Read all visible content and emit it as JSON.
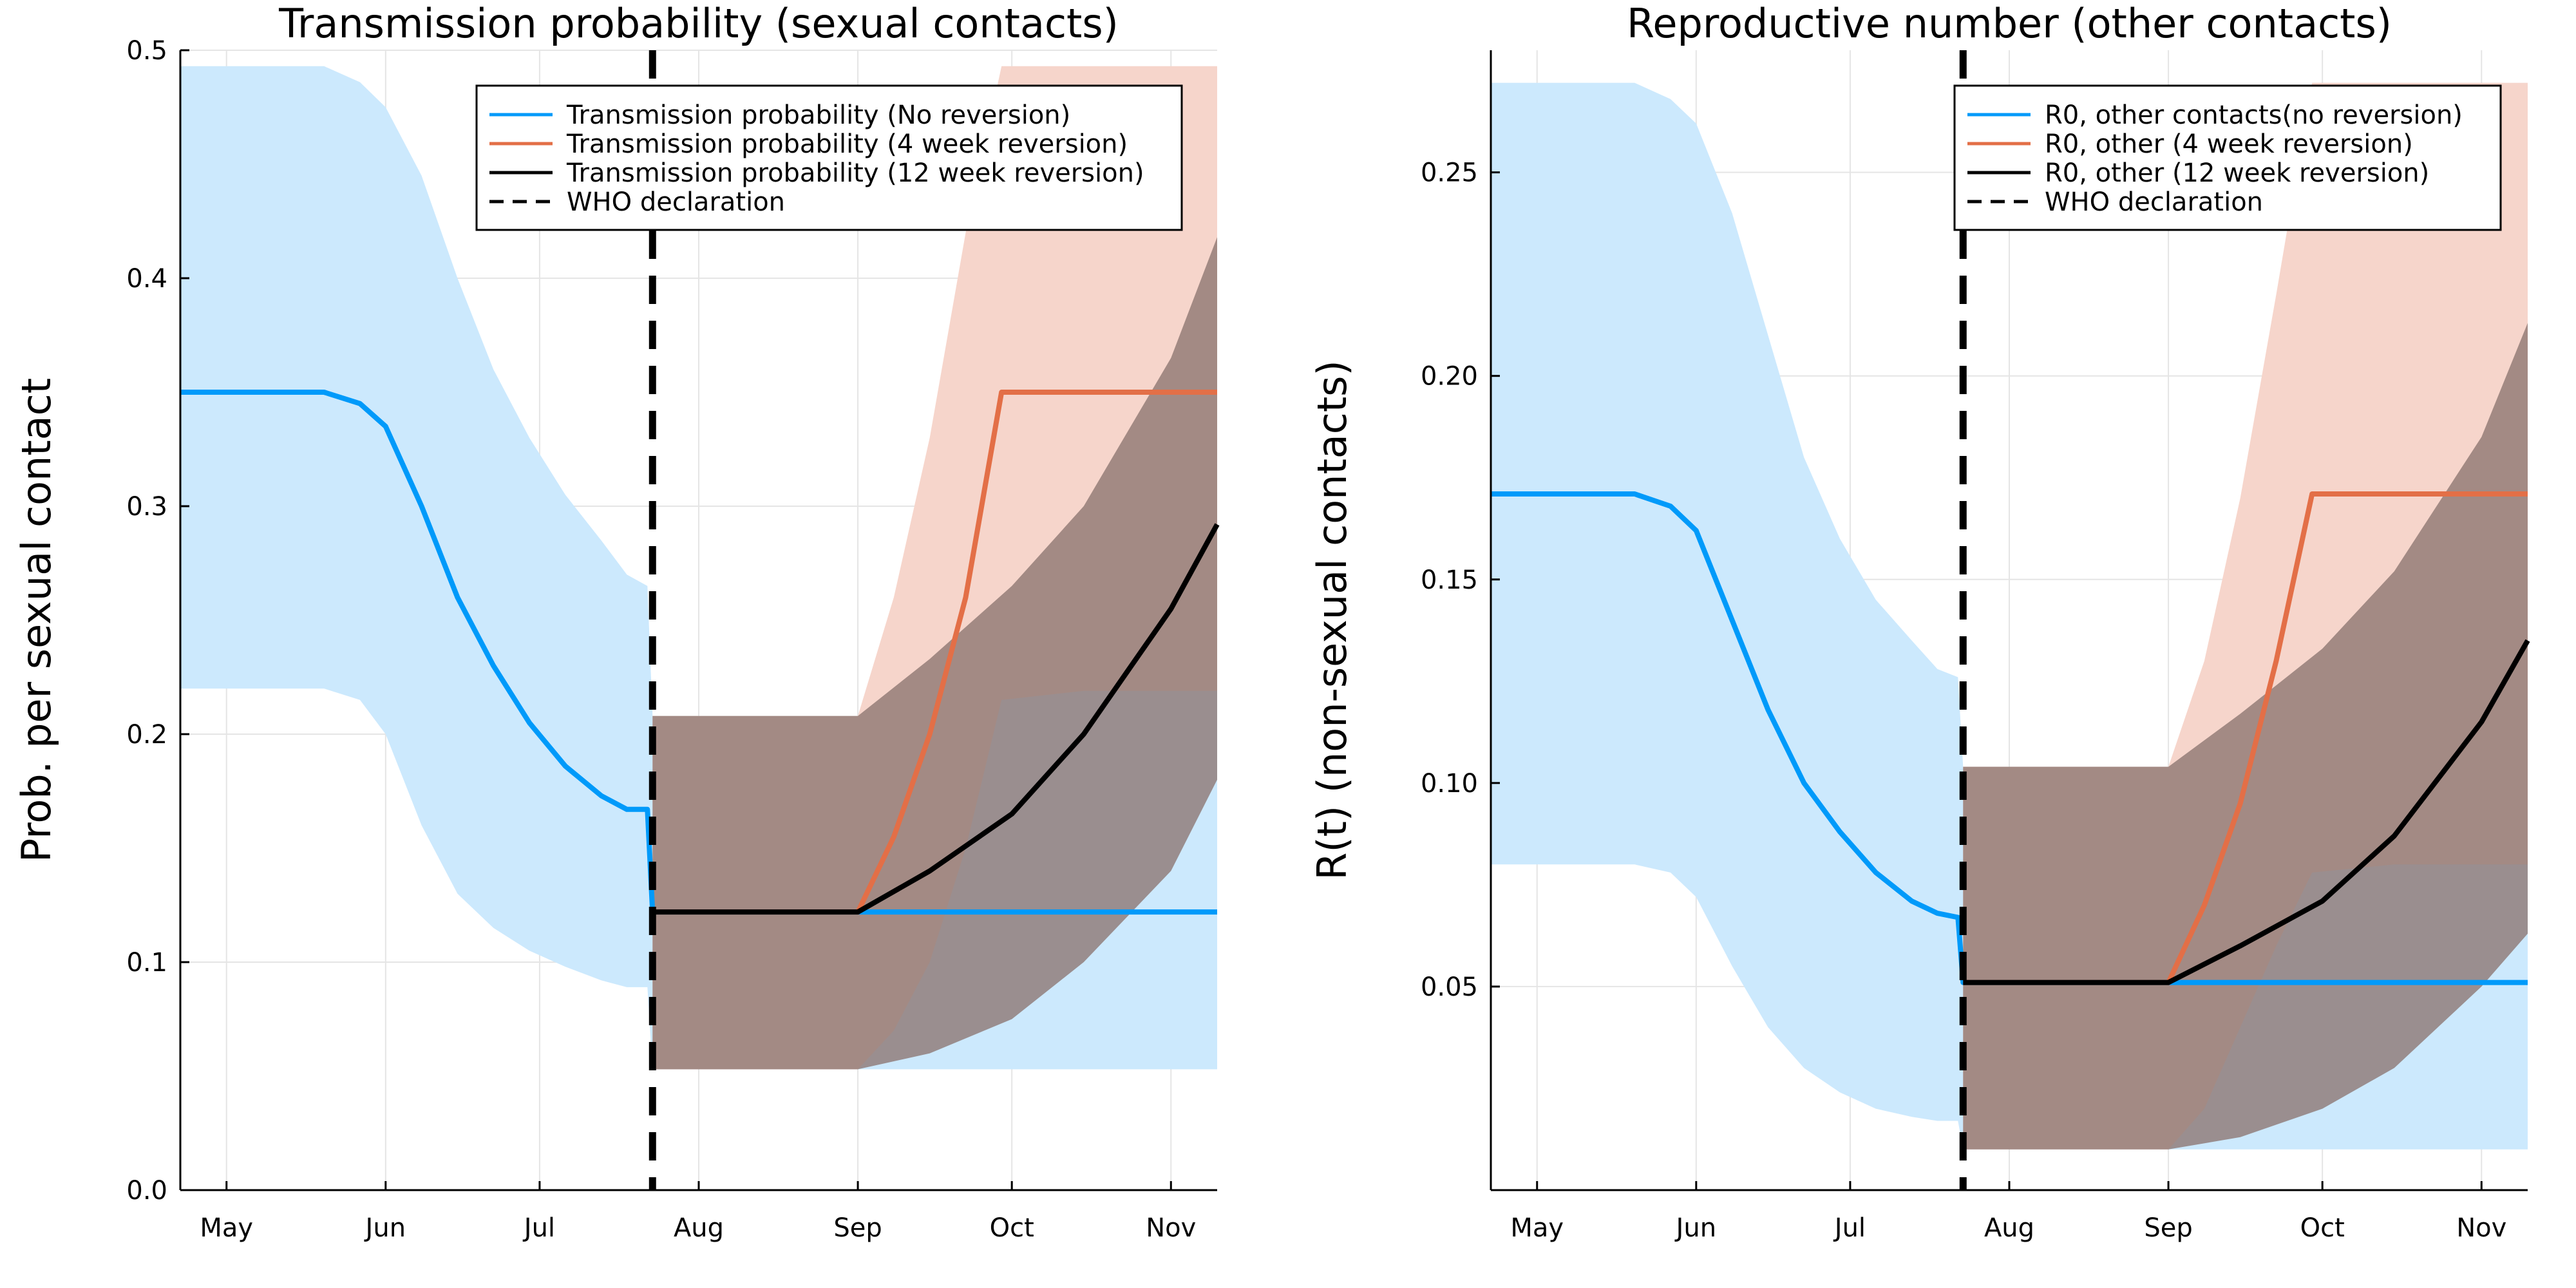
{
  "colors": {
    "no_reversion": "#009AFA",
    "no_reversion_band": "#CCE9FD",
    "four_week": "#E36F47",
    "four_week_band": "#F6D5CB",
    "twelve_week": "#000000",
    "overlap_band": "#8C7470",
    "who_line": "#000000"
  },
  "chart_data": [
    {
      "type": "line",
      "title": "Transmission probability (sexual contacts)",
      "xlabel": "",
      "ylabel": "Prob. per sexual contact",
      "x_tick_labels": [
        "May",
        "Jun",
        "Jul",
        "Aug",
        "Sep",
        "Oct",
        "Nov"
      ],
      "x_tick_dates": [
        "2022-05-01",
        "2022-06-01",
        "2022-07-01",
        "2022-08-01",
        "2022-09-01",
        "2022-10-01",
        "2022-11-01"
      ],
      "xlim": [
        "2022-04-22",
        "2022-11-10"
      ],
      "ylim": [
        0,
        0.5
      ],
      "y_ticks": [
        0.0,
        0.1,
        0.2,
        0.3,
        0.4,
        0.5
      ],
      "y_tick_labels": [
        "0.0",
        "0.1",
        "0.2",
        "0.3",
        "0.4",
        "0.5"
      ],
      "grid": true,
      "legend_position": "top-right",
      "who_declaration_date": "2022-07-23",
      "series": [
        {
          "name": "Transmission probability (No reversion)",
          "color_key": "no_reversion",
          "x": [
            "2022-04-22",
            "2022-05-06",
            "2022-05-20",
            "2022-05-27",
            "2022-06-01",
            "2022-06-08",
            "2022-06-15",
            "2022-06-22",
            "2022-06-29",
            "2022-07-06",
            "2022-07-13",
            "2022-07-18",
            "2022-07-22",
            "2022-07-23",
            "2022-08-10",
            "2022-09-01",
            "2022-10-01",
            "2022-11-10"
          ],
          "y": [
            0.35,
            0.35,
            0.35,
            0.345,
            0.335,
            0.3,
            0.26,
            0.23,
            0.205,
            0.186,
            0.173,
            0.167,
            0.167,
            0.122,
            0.122,
            0.122,
            0.122,
            0.122
          ],
          "band_lower": [
            0.22,
            0.22,
            0.22,
            0.215,
            0.2,
            0.16,
            0.13,
            0.115,
            0.105,
            0.098,
            0.092,
            0.089,
            0.089,
            0.053,
            0.053,
            0.053,
            0.053,
            0.053
          ],
          "band_upper": [
            0.493,
            0.493,
            0.493,
            0.486,
            0.475,
            0.445,
            0.4,
            0.36,
            0.33,
            0.305,
            0.285,
            0.27,
            0.265,
            0.208,
            0.208,
            0.208,
            0.219,
            0.219
          ]
        },
        {
          "name": "Transmission probability (4 week reversion)",
          "color_key": "four_week",
          "x": [
            "2022-07-23",
            "2022-09-01",
            "2022-09-08",
            "2022-09-15",
            "2022-09-22",
            "2022-09-29",
            "2022-10-15",
            "2022-11-10"
          ],
          "y": [
            0.122,
            0.122,
            0.155,
            0.2,
            0.26,
            0.35,
            0.35,
            0.35
          ],
          "band_lower": [
            0.053,
            0.053,
            0.07,
            0.1,
            0.15,
            0.215,
            0.219,
            0.219
          ],
          "band_upper": [
            0.208,
            0.208,
            0.26,
            0.33,
            0.42,
            0.493,
            0.493,
            0.493
          ]
        },
        {
          "name": "Transmission probability (12 week reversion)",
          "color_key": "twelve_week",
          "x": [
            "2022-07-23",
            "2022-09-01",
            "2022-09-15",
            "2022-10-01",
            "2022-10-15",
            "2022-11-01",
            "2022-11-10"
          ],
          "y": [
            0.122,
            0.122,
            0.14,
            0.165,
            0.2,
            0.255,
            0.292
          ],
          "band_lower": [
            0.053,
            0.053,
            0.06,
            0.075,
            0.1,
            0.14,
            0.18
          ],
          "band_upper": [
            0.208,
            0.208,
            0.233,
            0.265,
            0.3,
            0.365,
            0.418
          ]
        }
      ],
      "legend_entries": [
        {
          "label": "Transmission probability (No reversion)",
          "color_key": "no_reversion",
          "dashed": false
        },
        {
          "label": "Transmission probability (4 week reversion)",
          "color_key": "four_week",
          "dashed": false
        },
        {
          "label": "Transmission probability (12 week reversion)",
          "color_key": "twelve_week",
          "dashed": false
        },
        {
          "label": "WHO declaration",
          "color_key": "who_line",
          "dashed": true
        }
      ]
    },
    {
      "type": "line",
      "title": "Reproductive number (other contacts)",
      "xlabel": "",
      "ylabel": "R(t) (non-sexual contacts)",
      "x_tick_labels": [
        "May",
        "Jun",
        "Jul",
        "Aug",
        "Sep",
        "Oct",
        "Nov"
      ],
      "x_tick_dates": [
        "2022-05-01",
        "2022-06-01",
        "2022-07-01",
        "2022-08-01",
        "2022-09-01",
        "2022-10-01",
        "2022-11-01"
      ],
      "xlim": [
        "2022-04-22",
        "2022-11-10"
      ],
      "ylim": [
        0,
        0.28
      ],
      "y_ticks": [
        0.05,
        0.1,
        0.15,
        0.2,
        0.25
      ],
      "y_tick_labels": [
        "0.05",
        "0.10",
        "0.15",
        "0.20",
        "0.25"
      ],
      "grid": true,
      "legend_position": "top-right",
      "who_declaration_date": "2022-07-23",
      "series": [
        {
          "name": "R0, other contacts(no reversion)",
          "color_key": "no_reversion",
          "x": [
            "2022-04-22",
            "2022-05-06",
            "2022-05-20",
            "2022-05-27",
            "2022-06-01",
            "2022-06-08",
            "2022-06-15",
            "2022-06-22",
            "2022-06-29",
            "2022-07-06",
            "2022-07-13",
            "2022-07-18",
            "2022-07-22",
            "2022-07-23",
            "2022-08-10",
            "2022-09-01",
            "2022-10-01",
            "2022-11-10"
          ],
          "y": [
            0.171,
            0.171,
            0.171,
            0.168,
            0.162,
            0.14,
            0.118,
            0.1,
            0.088,
            0.078,
            0.071,
            0.068,
            0.067,
            0.051,
            0.051,
            0.051,
            0.051,
            0.051
          ],
          "band_lower": [
            0.08,
            0.08,
            0.08,
            0.078,
            0.072,
            0.055,
            0.04,
            0.03,
            0.024,
            0.02,
            0.018,
            0.017,
            0.017,
            0.01,
            0.01,
            0.01,
            0.01,
            0.01
          ],
          "band_upper": [
            0.272,
            0.272,
            0.272,
            0.268,
            0.262,
            0.24,
            0.21,
            0.18,
            0.16,
            0.145,
            0.135,
            0.128,
            0.126,
            0.104,
            0.104,
            0.104,
            0.104,
            0.104
          ]
        },
        {
          "name": "R0, other (4 week reversion)",
          "color_key": "four_week",
          "x": [
            "2022-07-23",
            "2022-09-01",
            "2022-09-08",
            "2022-09-15",
            "2022-09-22",
            "2022-09-29",
            "2022-10-15",
            "2022-11-10"
          ],
          "y": [
            0.051,
            0.051,
            0.07,
            0.095,
            0.13,
            0.171,
            0.171,
            0.171
          ],
          "band_lower": [
            0.01,
            0.01,
            0.02,
            0.04,
            0.06,
            0.078,
            0.08,
            0.08
          ],
          "band_upper": [
            0.104,
            0.104,
            0.13,
            0.17,
            0.22,
            0.272,
            0.272,
            0.272
          ]
        },
        {
          "name": "R0, other (12 week reversion)",
          "color_key": "twelve_week",
          "x": [
            "2022-07-23",
            "2022-09-01",
            "2022-09-15",
            "2022-10-01",
            "2022-10-15",
            "2022-11-01",
            "2022-11-10"
          ],
          "y": [
            0.051,
            0.051,
            0.06,
            0.071,
            0.087,
            0.115,
            0.135
          ],
          "band_lower": [
            0.01,
            0.01,
            0.013,
            0.02,
            0.03,
            0.05,
            0.063
          ],
          "band_upper": [
            0.104,
            0.104,
            0.117,
            0.133,
            0.152,
            0.185,
            0.213
          ]
        }
      ],
      "legend_entries": [
        {
          "label": "R0, other contacts(no reversion)",
          "color_key": "no_reversion",
          "dashed": false
        },
        {
          "label": "R0, other (4 week reversion)",
          "color_key": "four_week",
          "dashed": false
        },
        {
          "label": "R0, other (12 week reversion)",
          "color_key": "twelve_week",
          "dashed": false
        },
        {
          "label": "WHO declaration",
          "color_key": "who_line",
          "dashed": true
        }
      ]
    }
  ]
}
